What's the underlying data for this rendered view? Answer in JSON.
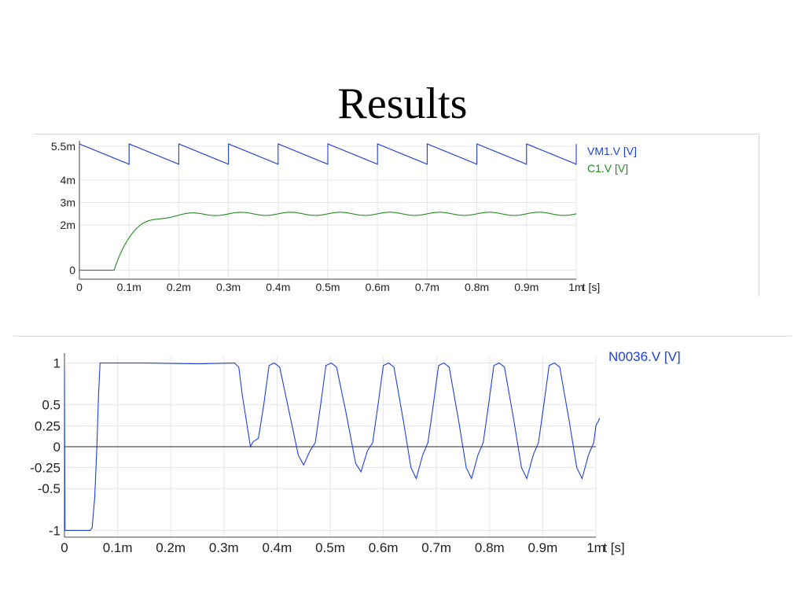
{
  "slide": {
    "title": "Results"
  },
  "chart_data": [
    {
      "type": "line",
      "title": "",
      "xlabel": "t [s]",
      "ylabel": "",
      "x_ticks": [
        0,
        0.0001,
        0.0002,
        0.0003,
        0.0004,
        0.0005,
        0.0006,
        0.0007,
        0.0008,
        0.0009,
        0.001
      ],
      "x_tick_labels": [
        "0",
        "0.1m",
        "0.2m",
        "0.3m",
        "0.4m",
        "0.5m",
        "0.6m",
        "0.7m",
        "0.8m",
        "0.9m",
        "1m"
      ],
      "y_ticks": [
        0,
        0.002,
        0.003,
        0.004,
        0.0055
      ],
      "y_tick_labels": [
        "0",
        "2m",
        "3m",
        "4m",
        "5.5m"
      ],
      "xlim": [
        0,
        0.001
      ],
      "ylim": [
        -0.0004,
        0.0056
      ],
      "grid": true,
      "legend_position": "right",
      "series": [
        {
          "name": "VM1.V [V]",
          "color": "#1f3fd6",
          "waveform": "sawtooth",
          "period": 0.0001,
          "first_rise_t": 0.0001,
          "initial_peak": 0.0056,
          "peak": 0.0056,
          "trough": 0.0047
        },
        {
          "name": "C1.V [V]",
          "color": "#1f8c1f",
          "waveform": "rc-charge",
          "start_t": 7e-05,
          "tau": 3.5e-05,
          "level": 0.0025,
          "ripple": 7e-05,
          "period": 0.0001
        }
      ]
    },
    {
      "type": "line",
      "title": "",
      "xlabel": "t [s]",
      "ylabel": "",
      "x_ticks": [
        0,
        0.0001,
        0.0002,
        0.0003,
        0.0004,
        0.0005,
        0.0006,
        0.0007,
        0.0008,
        0.0009,
        0.001
      ],
      "x_tick_labels": [
        "0",
        "0.1m",
        "0.2m",
        "0.3m",
        "0.4m",
        "0.5m",
        "0.6m",
        "0.7m",
        "0.8m",
        "0.9m",
        "1m"
      ],
      "y_ticks": [
        -1,
        -0.5,
        -0.25,
        0,
        0.25,
        0.5,
        1
      ],
      "y_tick_labels": [
        "-1",
        "-0.5",
        "-0.25",
        "0",
        "0.25",
        "0.5",
        "1"
      ],
      "xlim": [
        0,
        0.001
      ],
      "ylim": [
        -1.08,
        1.08
      ],
      "grid": true,
      "zero_line": true,
      "legend_position": "right",
      "series": [
        {
          "name": "N0036.V [V]",
          "color": "#1f3fd6",
          "points": [
            [
              0,
              0.95
            ],
            [
              1e-06,
              -1.0
            ],
            [
              5e-06,
              -1.0
            ],
            [
              4.8e-05,
              -1.0
            ],
            [
              5.2e-05,
              -0.97
            ],
            [
              5.7e-05,
              -0.6
            ],
            [
              6.1e-05,
              0.0
            ],
            [
              6.4e-05,
              0.6
            ],
            [
              6.7e-05,
              1.0
            ],
            [
              0.00015,
              1.0
            ],
            [
              0.00025,
              0.99
            ],
            [
              0.00032,
              1.0
            ],
            [
              0.000328,
              0.95
            ],
            [
              0.000335,
              0.6
            ],
            [
              0.000345,
              0.2
            ],
            [
              0.00035,
              0.0
            ],
            [
              0.000355,
              0.06
            ],
            [
              0.000365,
              0.1
            ],
            [
              0.000375,
              0.5
            ],
            [
              0.000385,
              0.97
            ],
            [
              0.000395,
              1.0
            ],
            [
              0.000405,
              0.95
            ],
            [
              0.00042,
              0.5
            ],
            [
              0.00044,
              -0.1
            ],
            [
              0.00045,
              -0.22
            ],
            [
              0.000462,
              -0.05
            ],
            [
              0.000472,
              0.05
            ],
            [
              0.000482,
              0.5
            ],
            [
              0.000492,
              0.97
            ],
            [
              0.000502,
              1.0
            ],
            [
              0.000512,
              0.95
            ],
            [
              0.00053,
              0.4
            ],
            [
              0.000548,
              -0.2
            ],
            [
              0.000558,
              -0.3
            ],
            [
              0.00057,
              -0.05
            ],
            [
              0.00058,
              0.05
            ],
            [
              0.00059,
              0.5
            ],
            [
              0.0006,
              0.97
            ],
            [
              0.00061,
              1.0
            ],
            [
              0.00062,
              0.95
            ],
            [
              0.000638,
              0.3
            ],
            [
              0.000652,
              -0.25
            ],
            [
              0.000662,
              -0.38
            ],
            [
              0.000674,
              -0.1
            ],
            [
              0.000684,
              0.05
            ],
            [
              0.000694,
              0.5
            ],
            [
              0.000704,
              0.97
            ],
            [
              0.000714,
              1.0
            ],
            [
              0.000724,
              0.95
            ],
            [
              0.000742,
              0.3
            ],
            [
              0.000756,
              -0.25
            ],
            [
              0.000766,
              -0.38
            ],
            [
              0.000778,
              -0.1
            ],
            [
              0.000788,
              0.05
            ],
            [
              0.000798,
              0.5
            ],
            [
              0.000808,
              0.97
            ],
            [
              0.000818,
              1.0
            ],
            [
              0.000828,
              0.95
            ],
            [
              0.000846,
              0.3
            ],
            [
              0.00086,
              -0.25
            ],
            [
              0.00087,
              -0.38
            ],
            [
              0.000882,
              -0.1
            ],
            [
              0.000892,
              0.05
            ],
            [
              0.000902,
              0.5
            ],
            [
              0.000912,
              0.97
            ],
            [
              0.000922,
              1.0
            ],
            [
              0.000932,
              0.95
            ],
            [
              0.00095,
              0.3
            ],
            [
              0.000964,
              -0.25
            ],
            [
              0.000974,
              -0.38
            ],
            [
              0.000986,
              -0.1
            ],
            [
              0.000996,
              0.05
            ],
            [
              0.001,
              0.25
            ],
            [
              0.00103,
              0.62
            ]
          ]
        }
      ]
    }
  ]
}
